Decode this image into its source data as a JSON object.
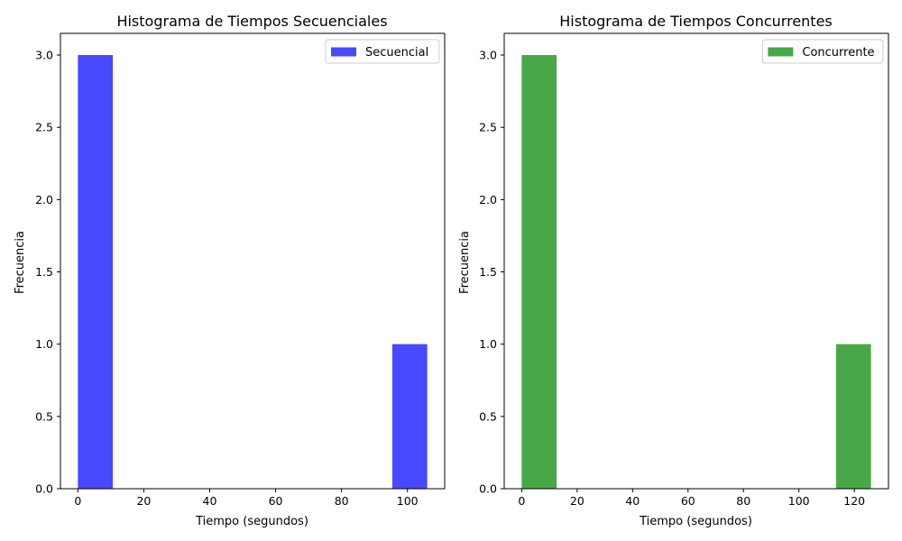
{
  "chart_data": [
    {
      "type": "bar",
      "title": "Histograma de Tiempos Secuenciales",
      "xlabel": "Tiempo (segundos)",
      "ylabel": "Frecuencia",
      "xlim": [
        -5.3,
        111.3
      ],
      "ylim": [
        0,
        3.15
      ],
      "xticks": [
        0,
        20,
        40,
        60,
        80,
        100
      ],
      "yticks": [
        0.0,
        0.5,
        1.0,
        1.5,
        2.0,
        2.5,
        3.0
      ],
      "grid": false,
      "legend_position": "top-right",
      "series": [
        {
          "name": "Secuencial",
          "color": "#4848ff",
          "bins": [
            {
              "x0": 0.0,
              "x1": 10.6,
              "count": 3
            },
            {
              "x0": 10.6,
              "x1": 21.2,
              "count": 0
            },
            {
              "x0": 21.2,
              "x1": 31.8,
              "count": 0
            },
            {
              "x0": 31.8,
              "x1": 42.4,
              "count": 0
            },
            {
              "x0": 42.4,
              "x1": 53.0,
              "count": 0
            },
            {
              "x0": 53.0,
              "x1": 63.6,
              "count": 0
            },
            {
              "x0": 63.6,
              "x1": 74.2,
              "count": 0
            },
            {
              "x0": 74.2,
              "x1": 84.8,
              "count": 0
            },
            {
              "x0": 84.8,
              "x1": 95.4,
              "count": 0
            },
            {
              "x0": 95.4,
              "x1": 106.0,
              "count": 1
            }
          ]
        }
      ]
    },
    {
      "type": "bar",
      "title": "Histograma de Tiempos Concurrentes",
      "xlabel": "Tiempo (segundos)",
      "ylabel": "Frecuencia",
      "xlim": [
        -6.3,
        132.3
      ],
      "ylim": [
        0,
        3.15
      ],
      "xticks": [
        0,
        20,
        40,
        60,
        80,
        100,
        120
      ],
      "yticks": [
        0.0,
        0.5,
        1.0,
        1.5,
        2.0,
        2.5,
        3.0
      ],
      "grid": false,
      "legend_position": "top-right",
      "series": [
        {
          "name": "Concurrente",
          "color": "#48a848",
          "bins": [
            {
              "x0": 0.0,
              "x1": 12.6,
              "count": 3
            },
            {
              "x0": 12.6,
              "x1": 25.2,
              "count": 0
            },
            {
              "x0": 25.2,
              "x1": 37.8,
              "count": 0
            },
            {
              "x0": 37.8,
              "x1": 50.4,
              "count": 0
            },
            {
              "x0": 50.4,
              "x1": 63.0,
              "count": 0
            },
            {
              "x0": 63.0,
              "x1": 75.6,
              "count": 0
            },
            {
              "x0": 75.6,
              "x1": 88.2,
              "count": 0
            },
            {
              "x0": 88.2,
              "x1": 100.8,
              "count": 0
            },
            {
              "x0": 100.8,
              "x1": 113.4,
              "count": 0
            },
            {
              "x0": 113.4,
              "x1": 126.0,
              "count": 1
            }
          ]
        }
      ]
    }
  ]
}
